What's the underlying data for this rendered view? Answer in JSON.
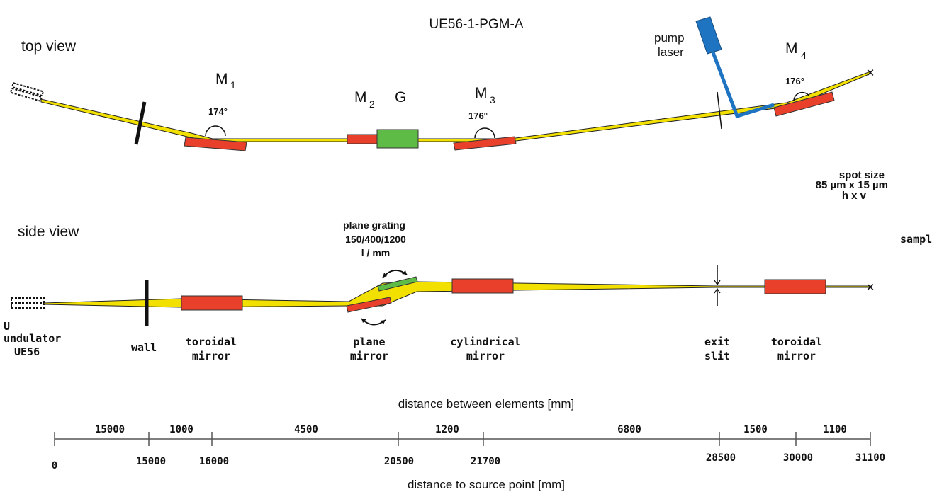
{
  "title": "UE56-1-PGM-A",
  "top_view": {
    "label": "top view",
    "m1": {
      "main": "M",
      "sub": "1",
      "angle": "174°"
    },
    "m2": {
      "main": "M",
      "sub": "2"
    },
    "grating": "G",
    "m3": {
      "main": "M",
      "sub": "3",
      "angle": "176°"
    },
    "m4": {
      "main": "M",
      "sub": "4",
      "angle": "176°"
    },
    "pump_laser": [
      "pump",
      "laser"
    ],
    "spot_size": [
      "spot size",
      "85 µm x 15 µm",
      "h x v"
    ]
  },
  "side_view": {
    "label": "side view",
    "grating_label": [
      "plane grating",
      "150/400/1200",
      "l / mm"
    ],
    "undulator": [
      "U",
      "undulator"
    ],
    "ue56": "UE56",
    "wall": "wall",
    "toroidal_mirror_1": [
      "toroidal",
      "mirror"
    ],
    "plane_mirror": [
      "plane",
      "mirror"
    ],
    "cylindrical_mirror": [
      "cylindrical",
      "mirror"
    ],
    "exit_slit": [
      "exit",
      "slit"
    ],
    "toroidal_mirror_2": [
      "toroidal",
      "mirror"
    ],
    "sample": "sample"
  },
  "scale": {
    "between_title": "distance between elements [mm]",
    "source_title": "distance to source point [mm]",
    "segments": [
      "15000",
      "1000",
      "4500",
      "1200",
      "6800",
      "1500",
      "1100"
    ],
    "ticks": [
      "0",
      "15000",
      "16000",
      "20500",
      "21700",
      "28500",
      "30000",
      "31100"
    ]
  },
  "colors": {
    "beam": "#f2e000",
    "mirror": "#e8402a",
    "grating": "#5dbb46",
    "laser": "#1f74c2",
    "ink": "#111111"
  }
}
